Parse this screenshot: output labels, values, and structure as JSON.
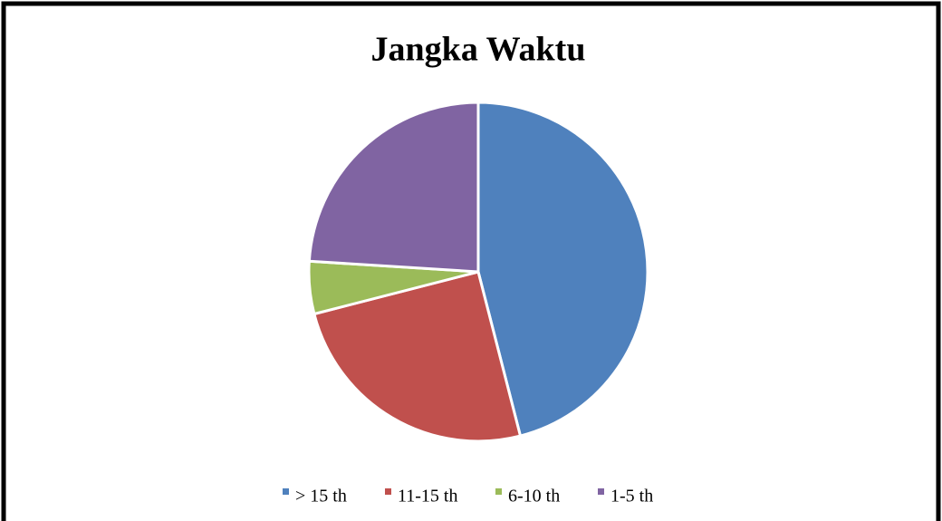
{
  "chart_data": {
    "type": "pie",
    "title": "Jangka Waktu",
    "categories": [
      "> 15 th",
      "11-15 th",
      "6-10 th",
      "1-5 th"
    ],
    "values": [
      46,
      25,
      5,
      24
    ],
    "colors": [
      "#4f81bd",
      "#c0504d",
      "#9bbb59",
      "#8064a2"
    ],
    "legend": "bottom"
  }
}
